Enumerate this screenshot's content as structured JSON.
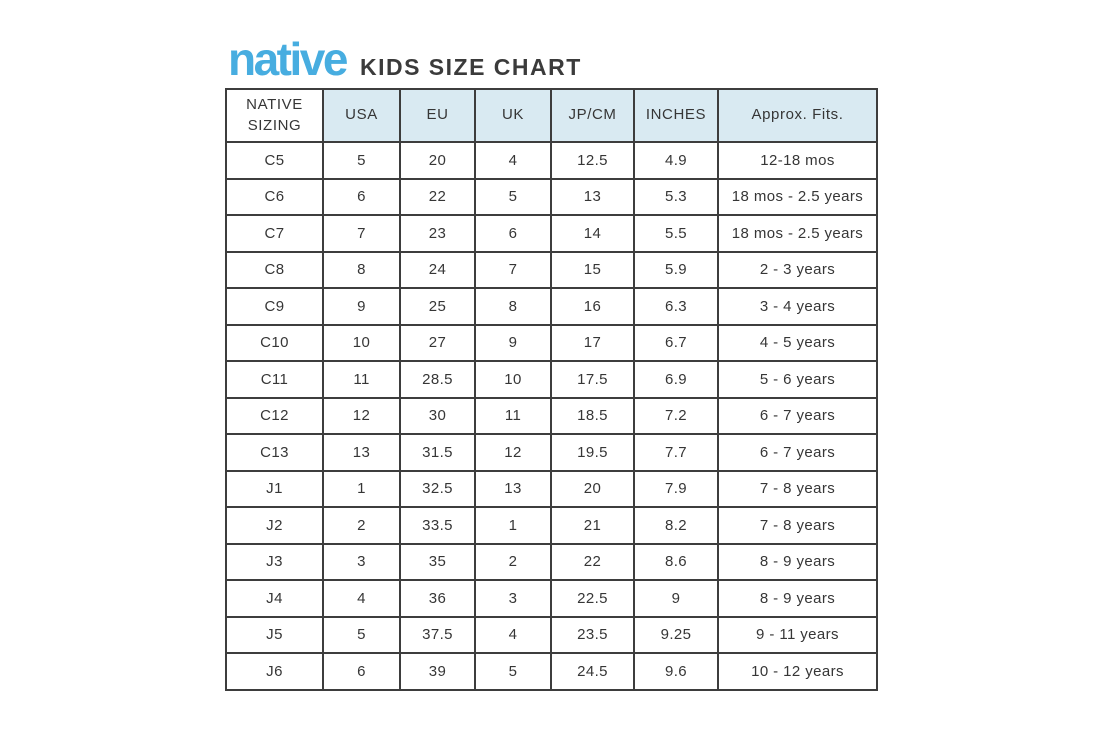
{
  "page": {
    "brand": "native",
    "title": "KIDS SIZE CHART"
  },
  "colors": {
    "brand_blue": "#47ade0",
    "header_bg": "#d9eaf2",
    "border": "#3d3d3d",
    "text": "#363636"
  },
  "chart_data": {
    "type": "table",
    "title": "native KIDS SIZE CHART",
    "columns": [
      "NATIVE SIZING",
      "USA",
      "EU",
      "UK",
      "JP/CM",
      "INCHES",
      "Approx. Fits."
    ],
    "rows": [
      [
        "C5",
        "5",
        "20",
        "4",
        "12.5",
        "4.9",
        "12-18 mos"
      ],
      [
        "C6",
        "6",
        "22",
        "5",
        "13",
        "5.3",
        "18 mos - 2.5 years"
      ],
      [
        "C7",
        "7",
        "23",
        "6",
        "14",
        "5.5",
        "18 mos - 2.5 years"
      ],
      [
        "C8",
        "8",
        "24",
        "7",
        "15",
        "5.9",
        "2 - 3 years"
      ],
      [
        "C9",
        "9",
        "25",
        "8",
        "16",
        "6.3",
        "3 - 4 years"
      ],
      [
        "C10",
        "10",
        "27",
        "9",
        "17",
        "6.7",
        "4 - 5 years"
      ],
      [
        "C11",
        "11",
        "28.5",
        "10",
        "17.5",
        "6.9",
        "5 - 6 years"
      ],
      [
        "C12",
        "12",
        "30",
        "11",
        "18.5",
        "7.2",
        "6 - 7 years"
      ],
      [
        "C13",
        "13",
        "31.5",
        "12",
        "19.5",
        "7.7",
        "6 - 7 years"
      ],
      [
        "J1",
        "1",
        "32.5",
        "13",
        "20",
        "7.9",
        "7 - 8 years"
      ],
      [
        "J2",
        "2",
        "33.5",
        "1",
        "21",
        "8.2",
        "7 - 8 years"
      ],
      [
        "J3",
        "3",
        "35",
        "2",
        "22",
        "8.6",
        "8 - 9 years"
      ],
      [
        "J4",
        "4",
        "36",
        "3",
        "22.5",
        "9",
        "8 - 9 years"
      ],
      [
        "J5",
        "5",
        "37.5",
        "4",
        "23.5",
        "9.25",
        "9 - 11 years"
      ],
      [
        "J6",
        "6",
        "39",
        "5",
        "24.5",
        "9.6",
        "10 - 12 years"
      ]
    ]
  }
}
